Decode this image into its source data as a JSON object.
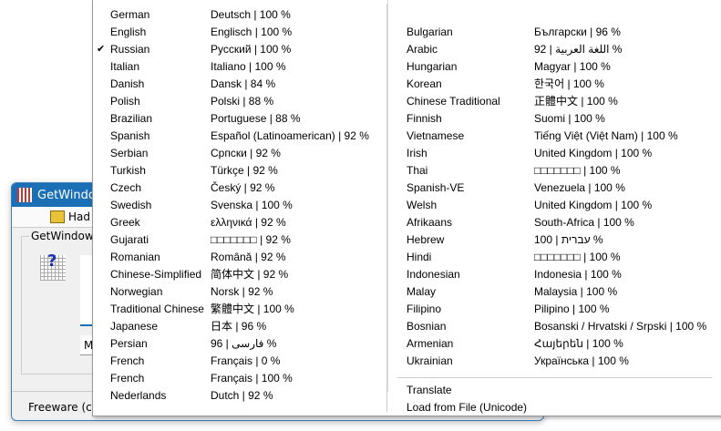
{
  "window": {
    "title": "GetWindowText",
    "toolbar_item": "Had",
    "group_label": "GetWindowTe",
    "button_label": "M",
    "status": "Freeware (c) N"
  },
  "menu": {
    "left": [
      {
        "name": "German",
        "value": "Deutsch | 100 %"
      },
      {
        "name": "English",
        "value": "Englisch | 100 %"
      },
      {
        "name": "Russian",
        "value": "Русский | 100 %",
        "checked": true
      },
      {
        "name": "Italian",
        "value": "Italiano | 100 %"
      },
      {
        "name": "Danish",
        "value": "Dansk | 84 %"
      },
      {
        "name": "Polish",
        "value": "Polski | 88 %"
      },
      {
        "name": "Brazilian",
        "value": "Portuguese | 88 %"
      },
      {
        "name": "Spanish",
        "value": "Español (Latinoamerican) | 92 %"
      },
      {
        "name": "Serbian",
        "value": "Српски | 92 %"
      },
      {
        "name": "Turkish",
        "value": "Türkçe | 92 %"
      },
      {
        "name": "Czech",
        "value": "Český | 92 %"
      },
      {
        "name": "Swedish",
        "value": "Svenska | 100 %"
      },
      {
        "name": "Greek",
        "value": "ελληνικά | 92 %"
      },
      {
        "name": "Gujarati",
        "value": "□□□□□□□ | 92 %"
      },
      {
        "name": "Romanian",
        "value": "Română | 92 %"
      },
      {
        "name": "Chinese-Simplified",
        "value": "简体中文 | 92 %"
      },
      {
        "name": "Norwegian",
        "value": "Norsk | 92 %"
      },
      {
        "name": "Traditional Chinese",
        "value": "繁體中文 | 100 %"
      },
      {
        "name": "Japanese",
        "value": "日本 | 96 %"
      },
      {
        "name": "Persian",
        "value": "96 | فارسی %"
      },
      {
        "name": "French",
        "value": "Français | 0 %"
      },
      {
        "name": "French",
        "value": "Français | 100 %"
      },
      {
        "name": "Nederlands",
        "value": "Dutch | 92 %"
      }
    ],
    "right": [
      {
        "name": "Bulgarian",
        "value": "Български | 96 %"
      },
      {
        "name": "Arabic",
        "value": "92 | اللغة العربية %"
      },
      {
        "name": "Hungarian",
        "value": "Magyar | 100 %"
      },
      {
        "name": "Korean",
        "value": "한국어 | 100 %"
      },
      {
        "name": "Chinese Traditional",
        "value": "正體中文 | 100 %"
      },
      {
        "name": "Finnish",
        "value": "Suomi | 100 %"
      },
      {
        "name": "Vietnamese",
        "value": "Tiếng Việt (Việt Nam) | 100 %"
      },
      {
        "name": "Irish",
        "value": "United Kingdom | 100 %"
      },
      {
        "name": "Thai",
        "value": "□□□□□□□ | 100 %"
      },
      {
        "name": "Spanish-VE",
        "value": "Venezuela | 100 %"
      },
      {
        "name": "Welsh",
        "value": "United Kingdom | 100 %"
      },
      {
        "name": "Afrikaans",
        "value": "South-Africa | 100 %"
      },
      {
        "name": "Hebrew",
        "value": "100 | עברית %"
      },
      {
        "name": "Hindi",
        "value": "□□□□□□□ | 100 %"
      },
      {
        "name": "Indonesian",
        "value": "Indonesia | 100 %"
      },
      {
        "name": "Malay",
        "value": "Malaysia | 100 %"
      },
      {
        "name": "Filipino",
        "value": "Pilipino | 100 %"
      },
      {
        "name": "Bosnian",
        "value": "Bosanski / Hrvatski / Srpski | 100 %"
      },
      {
        "name": "Armenian",
        "value": "Հայերեն | 100 %"
      },
      {
        "name": "Ukrainian",
        "value": "Українська | 100 %"
      }
    ],
    "actions": [
      "Translate",
      "Load from File (Unicode)"
    ],
    "check_icon": "checkmark-icon"
  }
}
